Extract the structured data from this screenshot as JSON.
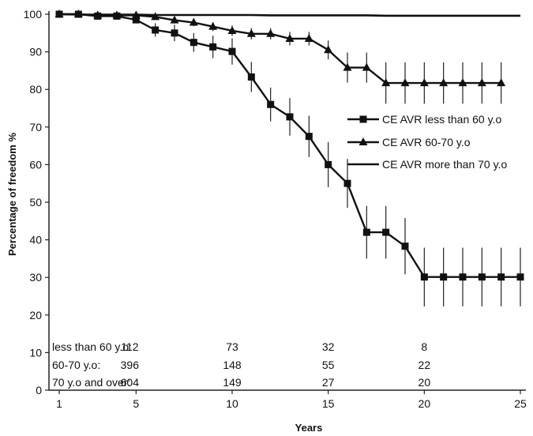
{
  "chart_data": {
    "type": "line",
    "xlabel": "Years",
    "ylabel": "Percentage of freedom %",
    "xlim": [
      1,
      25
    ],
    "ylim": [
      0,
      100
    ],
    "xticks": [
      1,
      5,
      10,
      15,
      20,
      25
    ],
    "yticks": [
      0,
      10,
      20,
      30,
      40,
      50,
      60,
      70,
      80,
      90,
      100
    ],
    "legend_position": "center-right",
    "series": [
      {
        "name": "CE AVR less than 60 y.o",
        "marker": "square",
        "x": [
          1,
          2,
          3,
          4,
          5,
          6,
          7,
          8,
          9,
          10,
          11,
          12,
          13,
          14,
          15,
          16,
          17,
          18,
          19,
          20,
          21,
          22,
          23,
          24,
          25
        ],
        "y": [
          100,
          100,
          99.5,
          99.5,
          98.5,
          95.8,
          95,
          92.5,
          91.3,
          90.1,
          83.3,
          76,
          72.7,
          67.5,
          60,
          55,
          42,
          42,
          38.3,
          30.1,
          30.1,
          30.1,
          30.1,
          30.1,
          30.1
        ],
        "error": [
          0,
          0,
          0,
          0,
          0.5,
          1.8,
          2.2,
          2.5,
          3,
          3.5,
          4,
          4.5,
          5,
          5.5,
          6,
          6.5,
          7,
          7,
          7.5,
          7.8,
          7.8,
          7.8,
          7.8,
          7.8,
          7.8
        ]
      },
      {
        "name": "CE AVR 60-70 y.o",
        "marker": "triangle",
        "x": [
          1,
          2,
          3,
          4,
          5,
          6,
          7,
          8,
          9,
          10,
          11,
          12,
          13,
          14,
          15,
          16,
          17,
          18,
          19,
          20,
          21,
          22,
          23,
          24
        ],
        "y": [
          100,
          100,
          99.7,
          99.7,
          99.7,
          99.3,
          98.4,
          97.8,
          96.7,
          95.6,
          94.8,
          94.8,
          93.5,
          93.5,
          90.5,
          85.8,
          85.8,
          81.7,
          81.7,
          81.7,
          81.7,
          81.7,
          81.7,
          81.7
        ],
        "error": [
          0,
          0,
          0,
          0,
          0,
          0.4,
          0.8,
          1,
          1.2,
          1.4,
          1.5,
          1.5,
          1.8,
          1.8,
          2.5,
          4,
          4,
          5.5,
          5.5,
          5.5,
          5.5,
          5.5,
          5.5,
          5.5
        ]
      },
      {
        "name": "CE AVR more than 70 y.o",
        "marker": "none",
        "x": [
          1,
          2,
          3,
          4,
          5,
          6,
          7,
          8,
          9,
          10,
          11,
          12,
          13,
          14,
          15,
          16,
          17,
          18,
          19,
          20,
          21,
          22,
          23,
          24,
          25
        ],
        "y": [
          100,
          99.9,
          99.9,
          99.9,
          99.9,
          99.8,
          99.8,
          99.8,
          99.8,
          99.8,
          99.8,
          99.7,
          99.7,
          99.7,
          99.7,
          99.7,
          99.7,
          99.6,
          99.6,
          99.6,
          99.6,
          99.6,
          99.6,
          99.6,
          99.6
        ],
        "error": [
          0,
          0,
          0,
          0,
          0,
          0,
          0,
          0,
          0,
          0,
          0,
          0,
          0,
          0,
          0,
          0,
          0,
          0,
          0,
          0,
          0,
          0,
          0,
          0,
          0
        ]
      }
    ],
    "numbers_at_risk": [
      {
        "label": "less than 60 y.o:",
        "values": [
          "112",
          "73",
          "32",
          "8"
        ]
      },
      {
        "label": "60-70 y.o:",
        "values": [
          "396",
          "148",
          "55",
          "22"
        ]
      },
      {
        "label": "70 y.o and over:",
        "values": [
          "604",
          "149",
          "27",
          "20"
        ]
      }
    ],
    "numbers_at_risk_years": [
      5,
      10,
      15,
      20
    ]
  }
}
